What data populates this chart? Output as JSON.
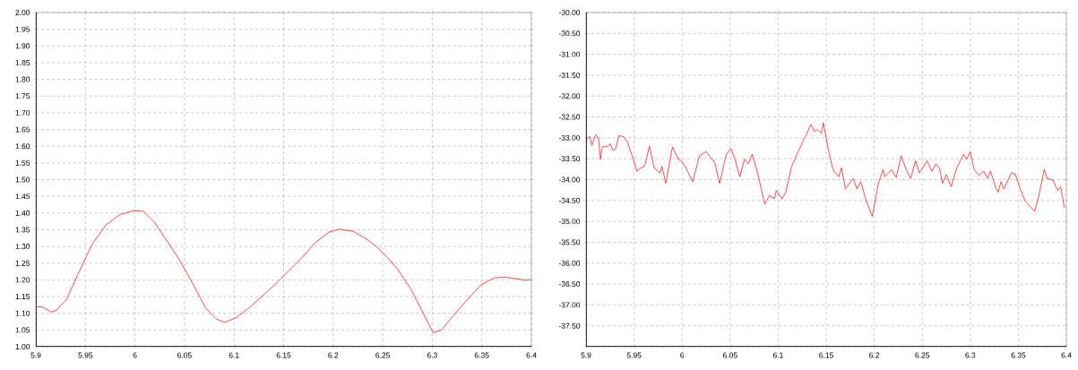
{
  "chart_data": [
    {
      "type": "line",
      "x": [
        5.9,
        5.9066,
        5.9153,
        5.9205,
        5.9309,
        5.943,
        5.9569,
        5.9707,
        5.9846,
        5.9985,
        6.0089,
        6.0193,
        6.0297,
        6.0436,
        6.0574,
        6.0713,
        6.0817,
        6.0904,
        6.1025,
        6.1129,
        6.1268,
        6.1406,
        6.1545,
        6.1684,
        6.1822,
        6.1961,
        6.2065,
        6.2204,
        6.2343,
        6.2447,
        6.2551,
        6.2655,
        6.2793,
        6.2932,
        6.3008,
        6.3088,
        6.3209,
        6.3348,
        6.3487,
        6.3626,
        6.373,
        6.3834,
        6.3938,
        6.4
      ],
      "series": [
        {
          "color": "#ff0000",
          "values": [
            1.12,
            1.119,
            1.104,
            1.108,
            1.142,
            1.22,
            1.307,
            1.364,
            1.395,
            1.407,
            1.405,
            1.374,
            1.328,
            1.266,
            1.194,
            1.116,
            1.084,
            1.072,
            1.088,
            1.111,
            1.147,
            1.184,
            1.225,
            1.266,
            1.312,
            1.343,
            1.352,
            1.345,
            1.321,
            1.297,
            1.266,
            1.23,
            1.168,
            1.086,
            1.042,
            1.049,
            1.091,
            1.139,
            1.184,
            1.206,
            1.208,
            1.204,
            1.199,
            1.201
          ]
        }
      ],
      "xlim": [
        5.9,
        6.4
      ],
      "ylim": [
        1.0,
        2.0
      ],
      "xticks": [
        5.9,
        5.95,
        6,
        6.05,
        6.1,
        6.15,
        6.2,
        6.25,
        6.3,
        6.35,
        6.4
      ],
      "yticks": [
        {
          "value": 1.0,
          "label": "1.00"
        },
        {
          "value": 1.05,
          "label": "1.05"
        },
        {
          "value": 1.1,
          "label": "1.10"
        },
        {
          "value": 1.15,
          "label": "1.15"
        },
        {
          "value": 1.2,
          "label": "1.20"
        },
        {
          "value": 1.25,
          "label": "1.25"
        },
        {
          "value": 1.3,
          "label": "1.30"
        },
        {
          "value": 1.35,
          "label": "1.35"
        },
        {
          "value": 1.4,
          "label": "1.40"
        },
        {
          "value": 1.45,
          "label": "1.45"
        },
        {
          "value": 1.5,
          "label": "1.50"
        },
        {
          "value": 1.55,
          "label": "1.55"
        },
        {
          "value": 1.6,
          "label": "1.60"
        },
        {
          "value": 1.65,
          "label": "1.65"
        },
        {
          "value": 1.7,
          "label": "1.70"
        },
        {
          "value": 1.75,
          "label": "1.75"
        },
        {
          "value": 1.8,
          "label": "1.80"
        },
        {
          "value": 1.85,
          "label": "1.85"
        },
        {
          "value": 1.9,
          "label": "1.90"
        },
        {
          "value": 1.95,
          "label": "1.95"
        },
        {
          "value": 2.0,
          "label": "2.00"
        }
      ],
      "grid": true
    },
    {
      "type": "line",
      "x": [
        5.9,
        5.904,
        5.906,
        5.91,
        5.913,
        5.915,
        5.917,
        5.923,
        5.925,
        5.928,
        5.931,
        5.934,
        5.939,
        5.943,
        5.948,
        5.953,
        5.957,
        5.961,
        5.966,
        5.971,
        5.977,
        5.979,
        5.983,
        5.99,
        5.996,
        6.0,
        6.004,
        6.011,
        6.018,
        6.025,
        6.034,
        6.039,
        6.046,
        6.051,
        6.055,
        6.06,
        6.065,
        6.069,
        6.073,
        6.079,
        6.086,
        6.091,
        6.096,
        6.098,
        6.104,
        6.108,
        6.114,
        6.123,
        6.13,
        6.134,
        6.138,
        6.141,
        6.145,
        6.147,
        6.152,
        6.157,
        6.163,
        6.166,
        6.17,
        6.178,
        6.182,
        6.186,
        6.191,
        6.198,
        6.204,
        6.209,
        6.211,
        6.218,
        6.223,
        6.228,
        6.234,
        6.238,
        6.243,
        6.247,
        6.255,
        6.26,
        6.264,
        6.268,
        6.271,
        6.275,
        6.28,
        6.286,
        6.293,
        6.296,
        6.3,
        6.304,
        6.309,
        6.314,
        6.318,
        6.321,
        6.327,
        6.329,
        6.332,
        6.335,
        6.343,
        6.347,
        6.352,
        6.357,
        6.367,
        6.371,
        6.377,
        6.38,
        6.386,
        6.391,
        6.394,
        6.398
      ],
      "series": [
        {
          "color": "#ff0000",
          "values": [
            -33.05,
            -32.97,
            -33.18,
            -32.93,
            -33.01,
            -33.51,
            -33.22,
            -33.2,
            -33.14,
            -33.3,
            -33.26,
            -32.95,
            -32.97,
            -33.1,
            -33.43,
            -33.8,
            -33.72,
            -33.68,
            -33.2,
            -33.72,
            -33.84,
            -33.68,
            -34.09,
            -33.22,
            -33.51,
            -33.57,
            -33.72,
            -34.05,
            -33.43,
            -33.33,
            -33.59,
            -34.09,
            -33.39,
            -33.26,
            -33.51,
            -33.93,
            -33.51,
            -33.62,
            -33.39,
            -33.88,
            -34.59,
            -34.38,
            -34.46,
            -34.26,
            -34.46,
            -34.3,
            -33.68,
            -33.22,
            -32.89,
            -32.68,
            -32.85,
            -32.8,
            -32.89,
            -32.64,
            -33.26,
            -33.76,
            -33.93,
            -33.72,
            -34.22,
            -33.97,
            -34.22,
            -34.05,
            -34.46,
            -34.88,
            -34.13,
            -33.76,
            -33.93,
            -33.76,
            -33.95,
            -33.43,
            -33.8,
            -33.97,
            -33.55,
            -33.84,
            -33.55,
            -33.8,
            -33.63,
            -33.72,
            -34.09,
            -33.88,
            -34.17,
            -33.72,
            -33.39,
            -33.51,
            -33.34,
            -33.76,
            -33.9,
            -33.8,
            -33.97,
            -33.8,
            -34.22,
            -34.3,
            -34.05,
            -34.22,
            -33.83,
            -33.88,
            -34.22,
            -34.51,
            -34.76,
            -34.42,
            -33.76,
            -33.97,
            -34.01,
            -34.26,
            -34.17,
            -34.67
          ]
        }
      ],
      "xlim": [
        5.9,
        6.4
      ],
      "ylim": [
        -38.0,
        -30.0
      ],
      "xticks": [
        5.9,
        5.95,
        6,
        6.05,
        6.1,
        6.15,
        6.2,
        6.25,
        6.3,
        6.35,
        6.4
      ],
      "yticks": [
        {
          "value": -38.0,
          "label": null
        },
        {
          "value": -37.5,
          "label": "-37.50"
        },
        {
          "value": -37.0,
          "label": "-37.00"
        },
        {
          "value": -36.5,
          "label": "-36.50"
        },
        {
          "value": -36.0,
          "label": "-36.00"
        },
        {
          "value": -35.5,
          "label": "-35.50"
        },
        {
          "value": -35.0,
          "label": "-35.00"
        },
        {
          "value": -34.5,
          "label": "-34.50"
        },
        {
          "value": -34.0,
          "label": "-34.00"
        },
        {
          "value": -33.5,
          "label": "-33.50"
        },
        {
          "value": -33.0,
          "label": "-33.00"
        },
        {
          "value": -32.5,
          "label": "-32.50"
        },
        {
          "value": -32.0,
          "label": "-32.00"
        },
        {
          "value": -31.5,
          "label": "-31.50"
        },
        {
          "value": -31.0,
          "label": "-31.00"
        },
        {
          "value": -30.5,
          "label": "-30.50"
        },
        {
          "value": -30.0,
          "label": "-30.00"
        }
      ],
      "grid": true
    }
  ]
}
